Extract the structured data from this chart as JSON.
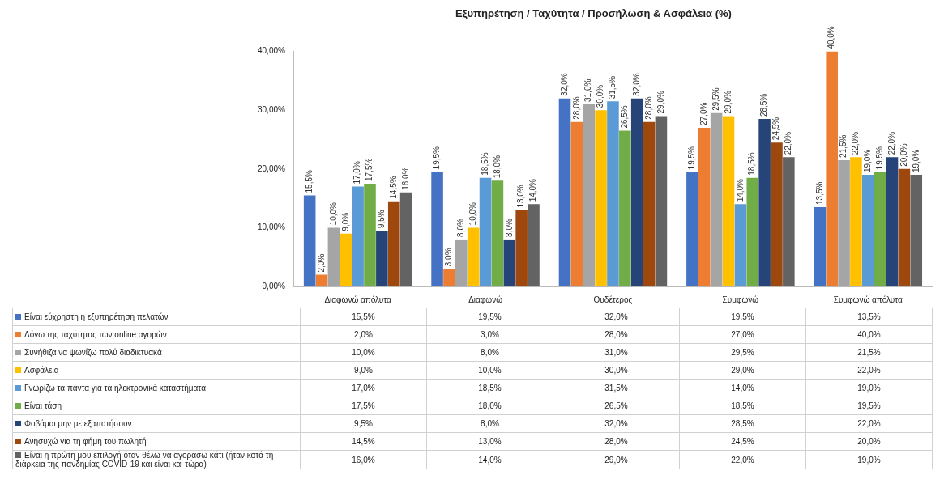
{
  "chart_data": {
    "type": "bar",
    "title": "Εξυπηρέτηση / Ταχύτητα / Προσήλωση & Ασφάλεια (%)",
    "categories": [
      "Διαφωνώ απόλυτα",
      "Διαφωνώ",
      "Ουδέτερος",
      "Συμφωνώ",
      "Συμφωνώ απόλυτα"
    ],
    "ylim": [
      0,
      40
    ],
    "yticks": [
      {
        "value": 0,
        "label": "0,00%"
      },
      {
        "value": 10,
        "label": "10,00%"
      },
      {
        "value": 20,
        "label": "20,00%"
      },
      {
        "value": 30,
        "label": "30,00%"
      },
      {
        "value": 40,
        "label": "40,00%"
      }
    ],
    "grid": false,
    "legend": "bottom",
    "series": [
      {
        "name": "Είναι εύχρηστη η εξυπηρέτηση πελατών",
        "color": "#4472c4",
        "values": [
          15.5,
          19.5,
          32,
          19.5,
          13.5
        ],
        "value_labels": [
          "15,5%",
          "19,5%",
          "32,0%",
          "19,5%",
          "13,5%"
        ]
      },
      {
        "name": "Λόγω της ταχύτητας των online αγορών",
        "color": "#ed7d31",
        "values": [
          2,
          3,
          28,
          27,
          40
        ],
        "value_labels": [
          "2,0%",
          "3,0%",
          "28,0%",
          "27,0%",
          "40,0%"
        ]
      },
      {
        "name": "Συνήθιζα να ψωνίζω πολύ διαδικτυακά",
        "color": "#a5a5a5",
        "values": [
          10,
          8,
          31,
          29.5,
          21.5
        ],
        "value_labels": [
          "10,0%",
          "8,0%",
          "31,0%",
          "29,5%",
          "21,5%"
        ]
      },
      {
        "name": "Ασφάλεια",
        "color": "#ffc000",
        "values": [
          9,
          10,
          30,
          29,
          22
        ],
        "value_labels": [
          "9,0%",
          "10,0%",
          "30,0%",
          "29,0%",
          "22,0%"
        ]
      },
      {
        "name": "Γνωρίζω τα πάντα για τα ηλεκτρονικά καταστήματα",
        "color": "#5b9bd5",
        "values": [
          17,
          18.5,
          31.5,
          14,
          19
        ],
        "value_labels": [
          "17,0%",
          "18,5%",
          "31,5%",
          "14,0%",
          "19,0%"
        ]
      },
      {
        "name": "Είναι τάση",
        "color": "#70ad47",
        "values": [
          17.5,
          18,
          26.5,
          18.5,
          19.5
        ],
        "value_labels": [
          "17,5%",
          "18,0%",
          "26,5%",
          "18,5%",
          "19,5%"
        ]
      },
      {
        "name": "Φοβάμαι μην με εξαπατήσουν",
        "color": "#264478",
        "values": [
          9.5,
          8,
          32,
          28.5,
          22
        ],
        "value_labels": [
          "9,5%",
          "8,0%",
          "32,0%",
          "28,5%",
          "22,0%"
        ]
      },
      {
        "name": "Ανησυχώ για τη φήμη του πωλητή",
        "color": "#9e480e",
        "values": [
          14.5,
          13,
          28,
          24.5,
          20
        ],
        "value_labels": [
          "14,5%",
          "13,0%",
          "28,0%",
          "24,5%",
          "20,0%"
        ]
      },
      {
        "name": "Είναι η πρώτη μου επιλογή όταν θέλω να αγοράσω κάτι (ήταν κατά τη διάρκεια της πανδημίας COVID-19 και είναι και τώρα)",
        "color": "#636363",
        "values": [
          16,
          14,
          29,
          22,
          19
        ],
        "value_labels": [
          "16,0%",
          "14,0%",
          "29,0%",
          "22,0%",
          "19,0%"
        ]
      }
    ]
  }
}
